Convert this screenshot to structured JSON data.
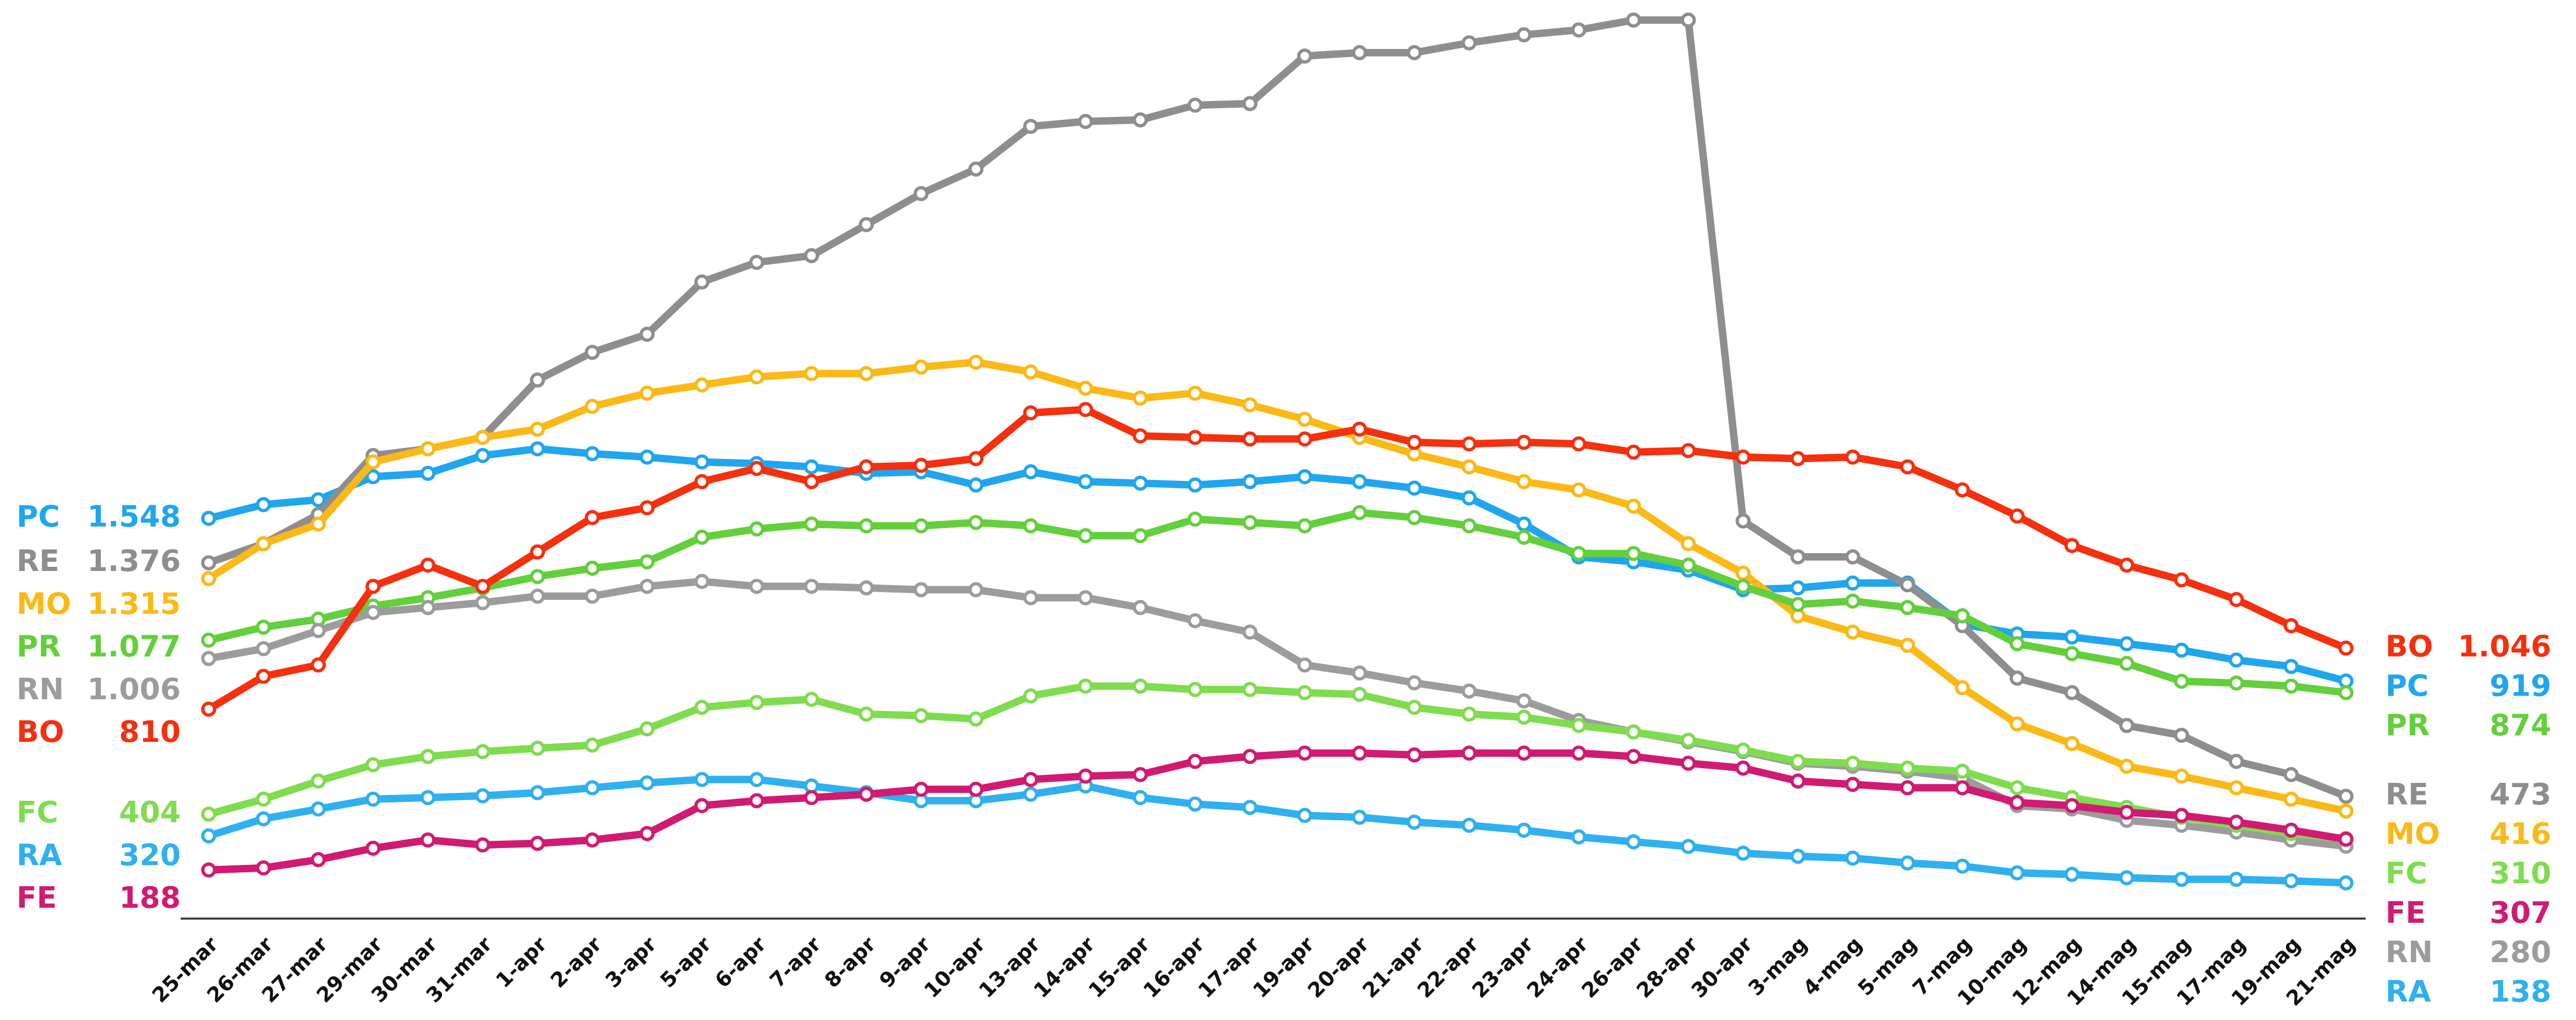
{
  "chart_data": {
    "type": "line",
    "categories": [
      "25-mar",
      "26-mar",
      "27-mar",
      "29-mar",
      "30-mar",
      "31-mar",
      "1-apr",
      "2-apr",
      "3-apr",
      "5-apr",
      "6-apr",
      "7-apr",
      "8-apr",
      "9-apr",
      "10-apr",
      "13-apr",
      "14-apr",
      "15-apr",
      "16-apr",
      "17-apr",
      "19-apr",
      "20-apr",
      "21-apr",
      "22-apr",
      "23-apr",
      "24-apr",
      "26-apr",
      "28-apr",
      "30-apr",
      "3-mag",
      "4-mag",
      "5-mag",
      "7-mag",
      "10-mag",
      "12-mag",
      "14-mag",
      "15-mag",
      "17-mag",
      "19-mag",
      "21-mag"
    ],
    "ylim": [
      0,
      3540
    ],
    "series": [
      {
        "name": "PC",
        "color": "#1fa6ee",
        "values": [
          1548,
          1601,
          1620,
          1709,
          1722,
          1791,
          1817,
          1798,
          1785,
          1766,
          1760,
          1747,
          1722,
          1728,
          1677,
          1728,
          1690,
          1684,
          1677,
          1690,
          1709,
          1690,
          1665,
          1627,
          1526,
          1399,
          1380,
          1348,
          1272,
          1279,
          1298,
          1298,
          1139,
          1101,
          1089,
          1063,
          1038,
          1000,
          975,
          919
        ],
        "value_labels": [
          "1.548",
          null,
          null,
          null,
          null,
          null,
          null,
          null,
          null,
          null,
          null,
          null,
          null,
          null,
          null,
          null,
          null,
          null,
          null,
          null,
          null,
          null,
          null,
          null,
          null,
          null,
          null,
          null,
          null,
          null,
          null,
          null,
          null,
          null,
          null,
          null,
          null,
          null,
          null,
          "919"
        ]
      },
      {
        "name": "RE",
        "color": "#8e8e8e",
        "values": [
          1376,
          1450,
          1563,
          1791,
          1817,
          1861,
          2083,
          2190,
          2260,
          2462,
          2538,
          2564,
          2684,
          2804,
          2899,
          3064,
          3083,
          3089,
          3146,
          3152,
          3336,
          3349,
          3349,
          3387,
          3418,
          3437,
          3475,
          3475,
          1538,
          1399,
          1399,
          1291,
          1133,
          930,
          874,
          747,
          709,
          608,
          557,
          473
        ],
        "value_labels": [
          "1.376",
          null,
          null,
          null,
          null,
          null,
          null,
          null,
          null,
          null,
          null,
          null,
          null,
          null,
          null,
          null,
          null,
          null,
          null,
          null,
          null,
          null,
          null,
          null,
          null,
          null,
          null,
          null,
          null,
          null,
          null,
          null,
          null,
          null,
          null,
          null,
          null,
          null,
          null,
          "473"
        ]
      },
      {
        "name": "MO",
        "color": "#fbb917",
        "values": [
          1315,
          1450,
          1526,
          1766,
          1817,
          1861,
          1893,
          1981,
          2032,
          2064,
          2095,
          2108,
          2108,
          2133,
          2152,
          2114,
          2051,
          2013,
          2032,
          1987,
          1931,
          1861,
          1797,
          1747,
          1690,
          1658,
          1595,
          1450,
          1336,
          1171,
          1108,
          1057,
          893,
          753,
          677,
          589,
          551,
          506,
          462,
          416
        ],
        "value_labels": [
          "1.315",
          null,
          null,
          null,
          null,
          null,
          null,
          null,
          null,
          null,
          null,
          null,
          null,
          null,
          null,
          null,
          null,
          null,
          null,
          null,
          null,
          null,
          null,
          null,
          null,
          null,
          null,
          null,
          null,
          null,
          null,
          null,
          null,
          null,
          null,
          null,
          null,
          null,
          null,
          "416"
        ]
      },
      {
        "name": "PR",
        "color": "#63cf3c",
        "values": [
          1077,
          1127,
          1158,
          1209,
          1241,
          1279,
          1323,
          1355,
          1380,
          1475,
          1507,
          1526,
          1519,
          1519,
          1532,
          1519,
          1481,
          1481,
          1545,
          1532,
          1519,
          1570,
          1551,
          1519,
          1475,
          1412,
          1412,
          1367,
          1285,
          1215,
          1228,
          1203,
          1171,
          1063,
          1025,
          987,
          918,
          911,
          899,
          874
        ],
        "value_labels": [
          "1.077",
          null,
          null,
          null,
          null,
          null,
          null,
          null,
          null,
          null,
          null,
          null,
          null,
          null,
          null,
          null,
          null,
          null,
          null,
          null,
          null,
          null,
          null,
          null,
          null,
          null,
          null,
          null,
          null,
          null,
          null,
          null,
          null,
          null,
          null,
          null,
          null,
          null,
          null,
          "874"
        ]
      },
      {
        "name": "RN",
        "color": "#9c9c9c",
        "values": [
          1006,
          1044,
          1114,
          1184,
          1203,
          1222,
          1247,
          1247,
          1285,
          1304,
          1285,
          1285,
          1279,
          1272,
          1272,
          1241,
          1241,
          1203,
          1152,
          1108,
          981,
          950,
          912,
          880,
          842,
          766,
          722,
          684,
          646,
          601,
          589,
          570,
          544,
          437,
          424,
          380,
          361,
          335,
          304,
          280
        ],
        "value_labels": [
          "1.006",
          null,
          null,
          null,
          null,
          null,
          null,
          null,
          null,
          null,
          null,
          null,
          null,
          null,
          null,
          null,
          null,
          null,
          null,
          null,
          null,
          null,
          null,
          null,
          null,
          null,
          null,
          null,
          null,
          null,
          null,
          null,
          null,
          null,
          null,
          null,
          null,
          null,
          null,
          "280"
        ]
      },
      {
        "name": "BO",
        "color": "#f4300e",
        "values": [
          810,
          937,
          981,
          1285,
          1367,
          1285,
          1418,
          1551,
          1589,
          1690,
          1741,
          1690,
          1747,
          1753,
          1779,
          1956,
          1969,
          1867,
          1861,
          1855,
          1855,
          1893,
          1842,
          1836,
          1842,
          1836,
          1804,
          1810,
          1785,
          1779,
          1785,
          1747,
          1658,
          1557,
          1443,
          1367,
          1310,
          1234,
          1133,
          1046
        ],
        "value_labels": [
          "810",
          null,
          null,
          null,
          null,
          null,
          null,
          null,
          null,
          null,
          null,
          null,
          null,
          null,
          null,
          null,
          null,
          null,
          null,
          null,
          null,
          null,
          null,
          null,
          null,
          null,
          null,
          null,
          null,
          null,
          null,
          null,
          null,
          null,
          null,
          null,
          null,
          null,
          null,
          "1.046"
        ]
      },
      {
        "name": "FC",
        "color": "#7fdc4e",
        "values": [
          404,
          462,
          532,
          595,
          627,
          646,
          659,
          671,
          734,
          817,
          836,
          848,
          791,
          785,
          772,
          861,
          899,
          899,
          886,
          886,
          874,
          867,
          817,
          791,
          779,
          747,
          722,
          690,
          652,
          608,
          601,
          582,
          570,
          506,
          468,
          430,
          392,
          361,
          329,
          310
        ],
        "value_labels": [
          "404",
          null,
          null,
          null,
          null,
          null,
          null,
          null,
          null,
          null,
          null,
          null,
          null,
          null,
          null,
          null,
          null,
          null,
          null,
          null,
          null,
          null,
          null,
          null,
          null,
          null,
          null,
          null,
          null,
          null,
          null,
          null,
          null,
          null,
          null,
          null,
          null,
          null,
          null,
          "310"
        ]
      },
      {
        "name": "RA",
        "color": "#2fb0ef",
        "values": [
          320,
          386,
          424,
          462,
          468,
          475,
          487,
          506,
          525,
          538,
          538,
          513,
          487,
          456,
          456,
          481,
          513,
          468,
          443,
          430,
          399,
          392,
          373,
          361,
          342,
          316,
          297,
          279,
          253,
          241,
          234,
          215,
          203,
          177,
          171,
          158,
          152,
          152,
          146,
          138
        ],
        "value_labels": [
          "320",
          null,
          null,
          null,
          null,
          null,
          null,
          null,
          null,
          null,
          null,
          null,
          null,
          null,
          null,
          null,
          null,
          null,
          null,
          null,
          null,
          null,
          null,
          null,
          null,
          null,
          null,
          null,
          null,
          null,
          null,
          null,
          null,
          null,
          null,
          null,
          null,
          null,
          null,
          "138"
        ]
      },
      {
        "name": "FE",
        "color": "#d11a72",
        "values": [
          188,
          196,
          228,
          272,
          304,
          285,
          291,
          304,
          329,
          437,
          456,
          468,
          481,
          500,
          500,
          538,
          551,
          557,
          608,
          627,
          640,
          640,
          633,
          640,
          640,
          640,
          627,
          601,
          582,
          532,
          519,
          506,
          506,
          449,
          437,
          411,
          399,
          373,
          342,
          307
        ],
        "value_labels": [
          "188",
          null,
          null,
          null,
          null,
          null,
          null,
          null,
          null,
          null,
          null,
          null,
          null,
          null,
          null,
          null,
          null,
          null,
          null,
          null,
          null,
          null,
          null,
          null,
          null,
          null,
          null,
          null,
          null,
          null,
          null,
          null,
          null,
          null,
          null,
          null,
          null,
          null,
          null,
          "307"
        ]
      }
    ]
  }
}
